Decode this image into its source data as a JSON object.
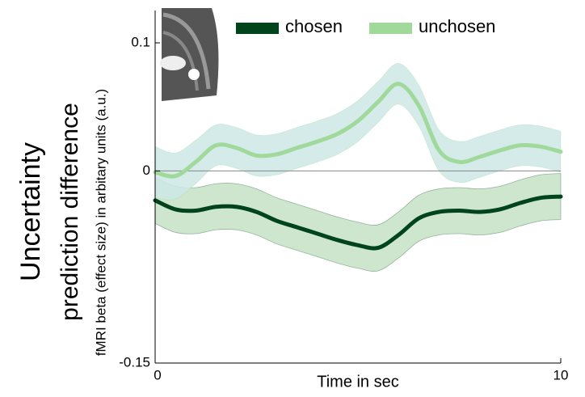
{
  "chart_data": {
    "type": "line",
    "ylabel": [
      "Uncertainty",
      "prediction difference",
      "fMRI beta (effect size) in arbitary units (a.u.)"
    ],
    "xlabel": "Time in sec",
    "x": [
      0,
      0.5,
      1,
      1.5,
      2,
      2.5,
      3,
      3.5,
      4,
      4.5,
      5,
      5.5,
      6,
      6.5,
      7,
      7.5,
      8,
      8.5,
      9,
      9.5,
      10
    ],
    "series": [
      {
        "name": "chosen",
        "color": "#00441b",
        "band_color": "#c7e2c5",
        "values": [
          -0.023,
          -0.03,
          -0.031,
          -0.028,
          -0.028,
          -0.032,
          -0.039,
          -0.044,
          -0.049,
          -0.054,
          -0.058,
          -0.06,
          -0.05,
          -0.037,
          -0.032,
          -0.031,
          -0.032,
          -0.03,
          -0.025,
          -0.021,
          -0.02
        ],
        "error": [
          0.018,
          0.018,
          0.018,
          0.018,
          0.018,
          0.018,
          0.018,
          0.018,
          0.018,
          0.018,
          0.018,
          0.018,
          0.018,
          0.018,
          0.018,
          0.018,
          0.018,
          0.018,
          0.018,
          0.018,
          0.018
        ]
      },
      {
        "name": "unchosen",
        "color": "#a1d99b",
        "band_color": "#cde7e6",
        "values": [
          -0.001,
          -0.004,
          0.007,
          0.02,
          0.018,
          0.012,
          0.013,
          0.018,
          0.023,
          0.029,
          0.039,
          0.054,
          0.068,
          0.051,
          0.016,
          0.007,
          0.011,
          0.016,
          0.02,
          0.019,
          0.015
        ],
        "error": [
          0.02,
          0.018,
          0.017,
          0.016,
          0.016,
          0.016,
          0.016,
          0.016,
          0.016,
          0.016,
          0.016,
          0.016,
          0.016,
          0.016,
          0.016,
          0.016,
          0.016,
          0.016,
          0.016,
          0.016,
          0.016
        ]
      }
    ],
    "xlim": [
      0,
      10
    ],
    "xticks": [
      0,
      10
    ],
    "ylim": [
      -0.15,
      0.1
    ],
    "yticks": [
      0.1,
      0,
      -0.15
    ],
    "zero_line": true
  }
}
